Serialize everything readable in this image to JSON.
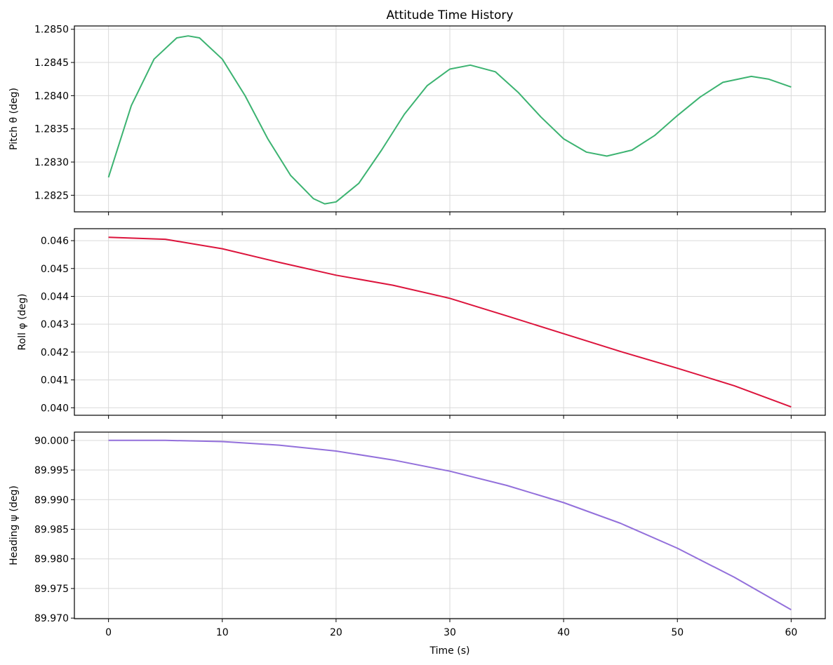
{
  "figure": {
    "title": "Attitude Time History",
    "xlabel": "Time (s)"
  },
  "chart_data": [
    {
      "type": "line",
      "title": "Attitude Time History",
      "xlabel": "",
      "ylabel": "Pitch θ (deg)",
      "xlim": [
        -3,
        63
      ],
      "ylim": [
        1.28225,
        1.28505
      ],
      "grid": true,
      "color": "#3cb371",
      "xticks": [
        0,
        10,
        20,
        30,
        40,
        50,
        60
      ],
      "yticks": [
        "1.2825",
        "1.2830",
        "1.2835",
        "1.2840",
        "1.2845",
        "1.2850"
      ],
      "x": [
        0,
        2,
        4,
        6,
        7,
        8,
        10,
        12,
        14,
        16,
        18,
        19,
        20,
        22,
        24,
        26,
        28,
        30,
        31.8,
        34,
        36,
        38,
        40,
        42,
        43.8,
        46,
        48,
        50,
        52,
        54,
        56.5,
        58,
        60
      ],
      "values": [
        1.28277,
        1.28385,
        1.28455,
        1.28487,
        1.2849,
        1.28487,
        1.28455,
        1.284,
        1.28335,
        1.2828,
        1.28245,
        1.28237,
        1.2824,
        1.28268,
        1.28318,
        1.28372,
        1.28415,
        1.2844,
        1.28446,
        1.28436,
        1.28405,
        1.28368,
        1.28335,
        1.28315,
        1.28309,
        1.28318,
        1.2834,
        1.2837,
        1.28398,
        1.2842,
        1.28429,
        1.28425,
        1.28413
      ]
    },
    {
      "type": "line",
      "xlabel": "",
      "ylabel": "Roll φ (deg)",
      "xlim": [
        -3,
        63
      ],
      "ylim": [
        0.03973,
        0.04643
      ],
      "grid": true,
      "color": "#dc143c",
      "xticks": [
        0,
        10,
        20,
        30,
        40,
        50,
        60
      ],
      "yticks": [
        "0.040",
        "0.041",
        "0.042",
        "0.043",
        "0.044",
        "0.045",
        "0.046"
      ],
      "x": [
        0,
        5,
        10,
        15,
        20,
        25,
        30,
        35,
        40,
        45,
        50,
        55,
        60
      ],
      "values": [
        0.04612,
        0.04605,
        0.04571,
        0.04522,
        0.04476,
        0.0444,
        0.04393,
        0.0433,
        0.04266,
        0.04202,
        0.04142,
        0.04079,
        0.04003
      ]
    },
    {
      "type": "line",
      "xlabel": "Time (s)",
      "ylabel": "Heading ψ (deg)",
      "xlim": [
        -3,
        63
      ],
      "ylim": [
        89.9699,
        90.0014
      ],
      "grid": true,
      "color": "#9370db",
      "xticks": [
        0,
        10,
        20,
        30,
        40,
        50,
        60
      ],
      "yticks": [
        "89.970",
        "89.975",
        "89.980",
        "89.985",
        "89.990",
        "89.995",
        "90.000"
      ],
      "x": [
        0,
        5,
        10,
        15,
        20,
        25,
        30,
        35,
        40,
        45,
        50,
        55,
        60
      ],
      "values": [
        90.0,
        90.0,
        89.9998,
        89.9992,
        89.9982,
        89.9967,
        89.9948,
        89.9924,
        89.9895,
        89.986,
        89.9818,
        89.9769,
        89.9714
      ]
    }
  ]
}
